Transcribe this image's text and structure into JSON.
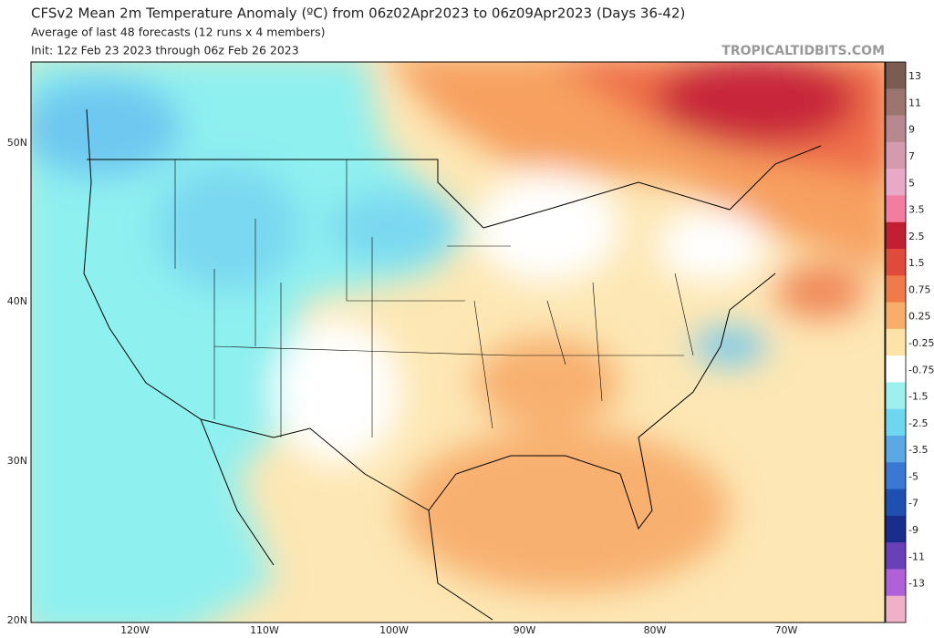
{
  "header": {
    "title": "CFSv2 Mean 2m Temperature Anomaly (ºC) from 06z02Apr2023 to 06z09Apr2023 (Days 36-42)",
    "subtitle": "Average of last 48 forecasts (12 runs x 4 members)",
    "init": "Init: 12z Feb 23 2023 through 06z Feb 26 2023",
    "watermark": "TROPICALTIDBITS.COM"
  },
  "map": {
    "lat_labels": [
      "50N",
      "40N",
      "30N",
      "20N"
    ],
    "lon_labels": [
      "120W",
      "110W",
      "100W",
      "90W",
      "80W",
      "70W"
    ]
  },
  "colorbar": {
    "labels": [
      "13",
      "11",
      "9",
      "7",
      "5",
      "3.5",
      "2.5",
      "1.5",
      "0.75",
      "0.25",
      "-0.25",
      "-0.75",
      "-1.5",
      "-2.5",
      "-3.5",
      "-5",
      "-7",
      "-9",
      "-11",
      "-13"
    ],
    "colors": [
      "#7a5c52",
      "#9c7470",
      "#b9878f",
      "#d49aae",
      "#eaa8c8",
      "#f37da0",
      "#c21f33",
      "#e04a3a",
      "#f07a4a",
      "#f8ae6a",
      "#fde3a6",
      "#ffffff",
      "#9df0ee",
      "#6fd6ef",
      "#5aa8e6",
      "#3a78d4",
      "#1f4fb0",
      "#1a2d8c",
      "#6a40b8",
      "#b060d8",
      "#f0b0c8"
    ]
  }
}
